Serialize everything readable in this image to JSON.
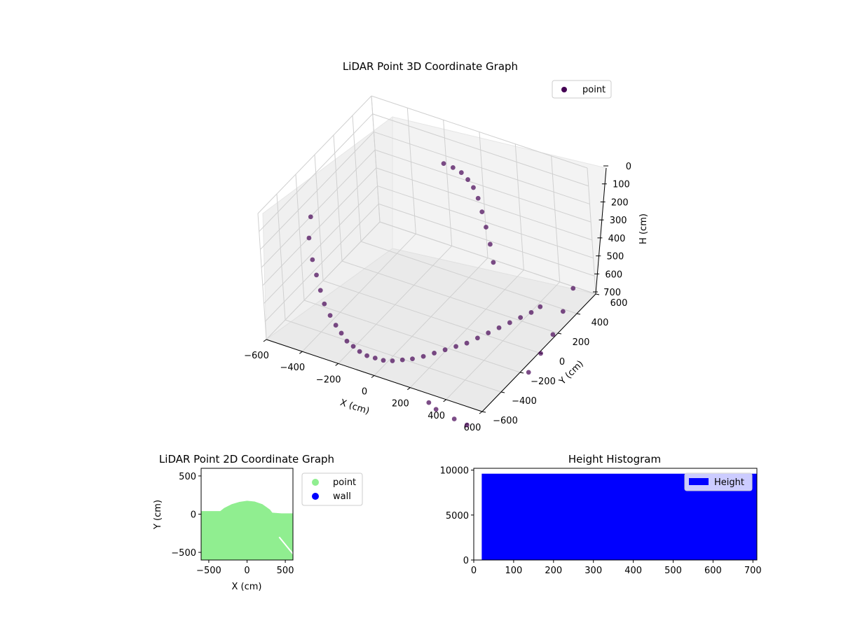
{
  "chart_data": [
    {
      "type": "scatter",
      "projection": "3d",
      "title": "LiDAR Point 3D Coordinate Graph",
      "xlabel": "X (cm)",
      "ylabel": "Y (cm)",
      "zlabel": "H (cm)",
      "xlim": [
        -600,
        600
      ],
      "ylim": [
        -600,
        600
      ],
      "zlim": [
        0,
        700
      ],
      "z_inverted": true,
      "x_ticks": [
        -600,
        -400,
        -200,
        0,
        200,
        400,
        600
      ],
      "y_ticks": [
        -600,
        -400,
        -200,
        0,
        200,
        400,
        600
      ],
      "z_ticks": [
        0,
        100,
        200,
        300,
        400,
        500,
        600,
        700
      ],
      "grid": true,
      "legend": "top-right",
      "series": [
        {
          "name": "point",
          "color": "#440154",
          "description_of_shape": "dense arc-shaped wall band plus curved structure and sparse outliers",
          "points": [
            [
              -560,
              -150,
              250
            ],
            [
              -520,
              -250,
              300
            ],
            [
              -480,
              -300,
              380
            ],
            [
              -440,
              -340,
              430
            ],
            [
              -400,
              -380,
              480
            ],
            [
              -360,
              -420,
              520
            ],
            [
              -320,
              -440,
              560
            ],
            [
              -280,
              -460,
              590
            ],
            [
              -240,
              -480,
              610
            ],
            [
              -200,
              -500,
              630
            ],
            [
              -160,
              -510,
              640
            ],
            [
              -120,
              -520,
              650
            ],
            [
              -80,
              -520,
              660
            ],
            [
              -40,
              -510,
              665
            ],
            [
              0,
              -500,
              670
            ],
            [
              40,
              -480,
              670
            ],
            [
              80,
              -450,
              668
            ],
            [
              120,
              -420,
              665
            ],
            [
              160,
              -380,
              660
            ],
            [
              200,
              -340,
              650
            ],
            [
              240,
              -300,
              640
            ],
            [
              280,
              -260,
              630
            ],
            [
              320,
              -220,
              620
            ],
            [
              360,
              -180,
              600
            ],
            [
              400,
              -140,
              580
            ],
            [
              440,
              -100,
              560
            ],
            [
              480,
              -60,
              540
            ],
            [
              520,
              -20,
              520
            ],
            [
              560,
              20,
              500
            ],
            [
              590,
              60,
              480
            ],
            [
              -100,
              400,
              100
            ],
            [
              -60,
              420,
              120
            ],
            [
              -20,
              430,
              140
            ],
            [
              20,
              420,
              160
            ],
            [
              60,
              400,
              180
            ],
            [
              100,
              370,
              210
            ],
            [
              140,
              330,
              250
            ],
            [
              180,
              290,
              300
            ],
            [
              220,
              250,
              360
            ],
            [
              260,
              200,
              420
            ],
            [
              560,
              450,
              600
            ],
            [
              580,
              300,
              640
            ],
            [
              600,
              150,
              680
            ],
            [
              610,
              0,
              700
            ],
            [
              620,
              -150,
              720
            ],
            [
              300,
              -600,
              750
            ],
            [
              350,
              -620,
              760
            ],
            [
              450,
              -620,
              780
            ],
            [
              520,
              -620,
              790
            ]
          ]
        }
      ]
    },
    {
      "type": "scatter",
      "title": "LiDAR Point 2D Coordinate Graph",
      "xlabel": "X (cm)",
      "ylabel": "Y (cm)",
      "xlim": [
        -600,
        600
      ],
      "ylim": [
        -600,
        600
      ],
      "x_ticks": [
        -500,
        0,
        500
      ],
      "y_ticks": [
        -500,
        0,
        500
      ],
      "legend": "outside-right",
      "series": [
        {
          "name": "point",
          "color": "#90ee90",
          "region_boundary": [
            [
              -600,
              40
            ],
            [
              -350,
              40
            ],
            [
              -300,
              80
            ],
            [
              -200,
              130
            ],
            [
              -100,
              160
            ],
            [
              0,
              175
            ],
            [
              100,
              165
            ],
            [
              200,
              130
            ],
            [
              300,
              60
            ],
            [
              330,
              20
            ],
            [
              450,
              10
            ],
            [
              600,
              10
            ],
            [
              600,
              -600
            ],
            [
              -600,
              -600
            ]
          ]
        },
        {
          "name": "wall",
          "color": "#0000ff",
          "region_boundary": []
        }
      ]
    },
    {
      "type": "bar",
      "title": "Height Histogram",
      "xlabel": "",
      "ylabel": "",
      "xlim": [
        0,
        710
      ],
      "ylim": [
        0,
        10200
      ],
      "x_ticks": [
        0,
        100,
        200,
        300,
        400,
        500,
        600,
        700
      ],
      "y_ticks": [
        0,
        5000,
        10000
      ],
      "legend": "top-right",
      "series": [
        {
          "name": "Height",
          "color": "#0000ff",
          "bins": [
            [
              20,
              710,
              9600
            ]
          ]
        }
      ]
    }
  ]
}
